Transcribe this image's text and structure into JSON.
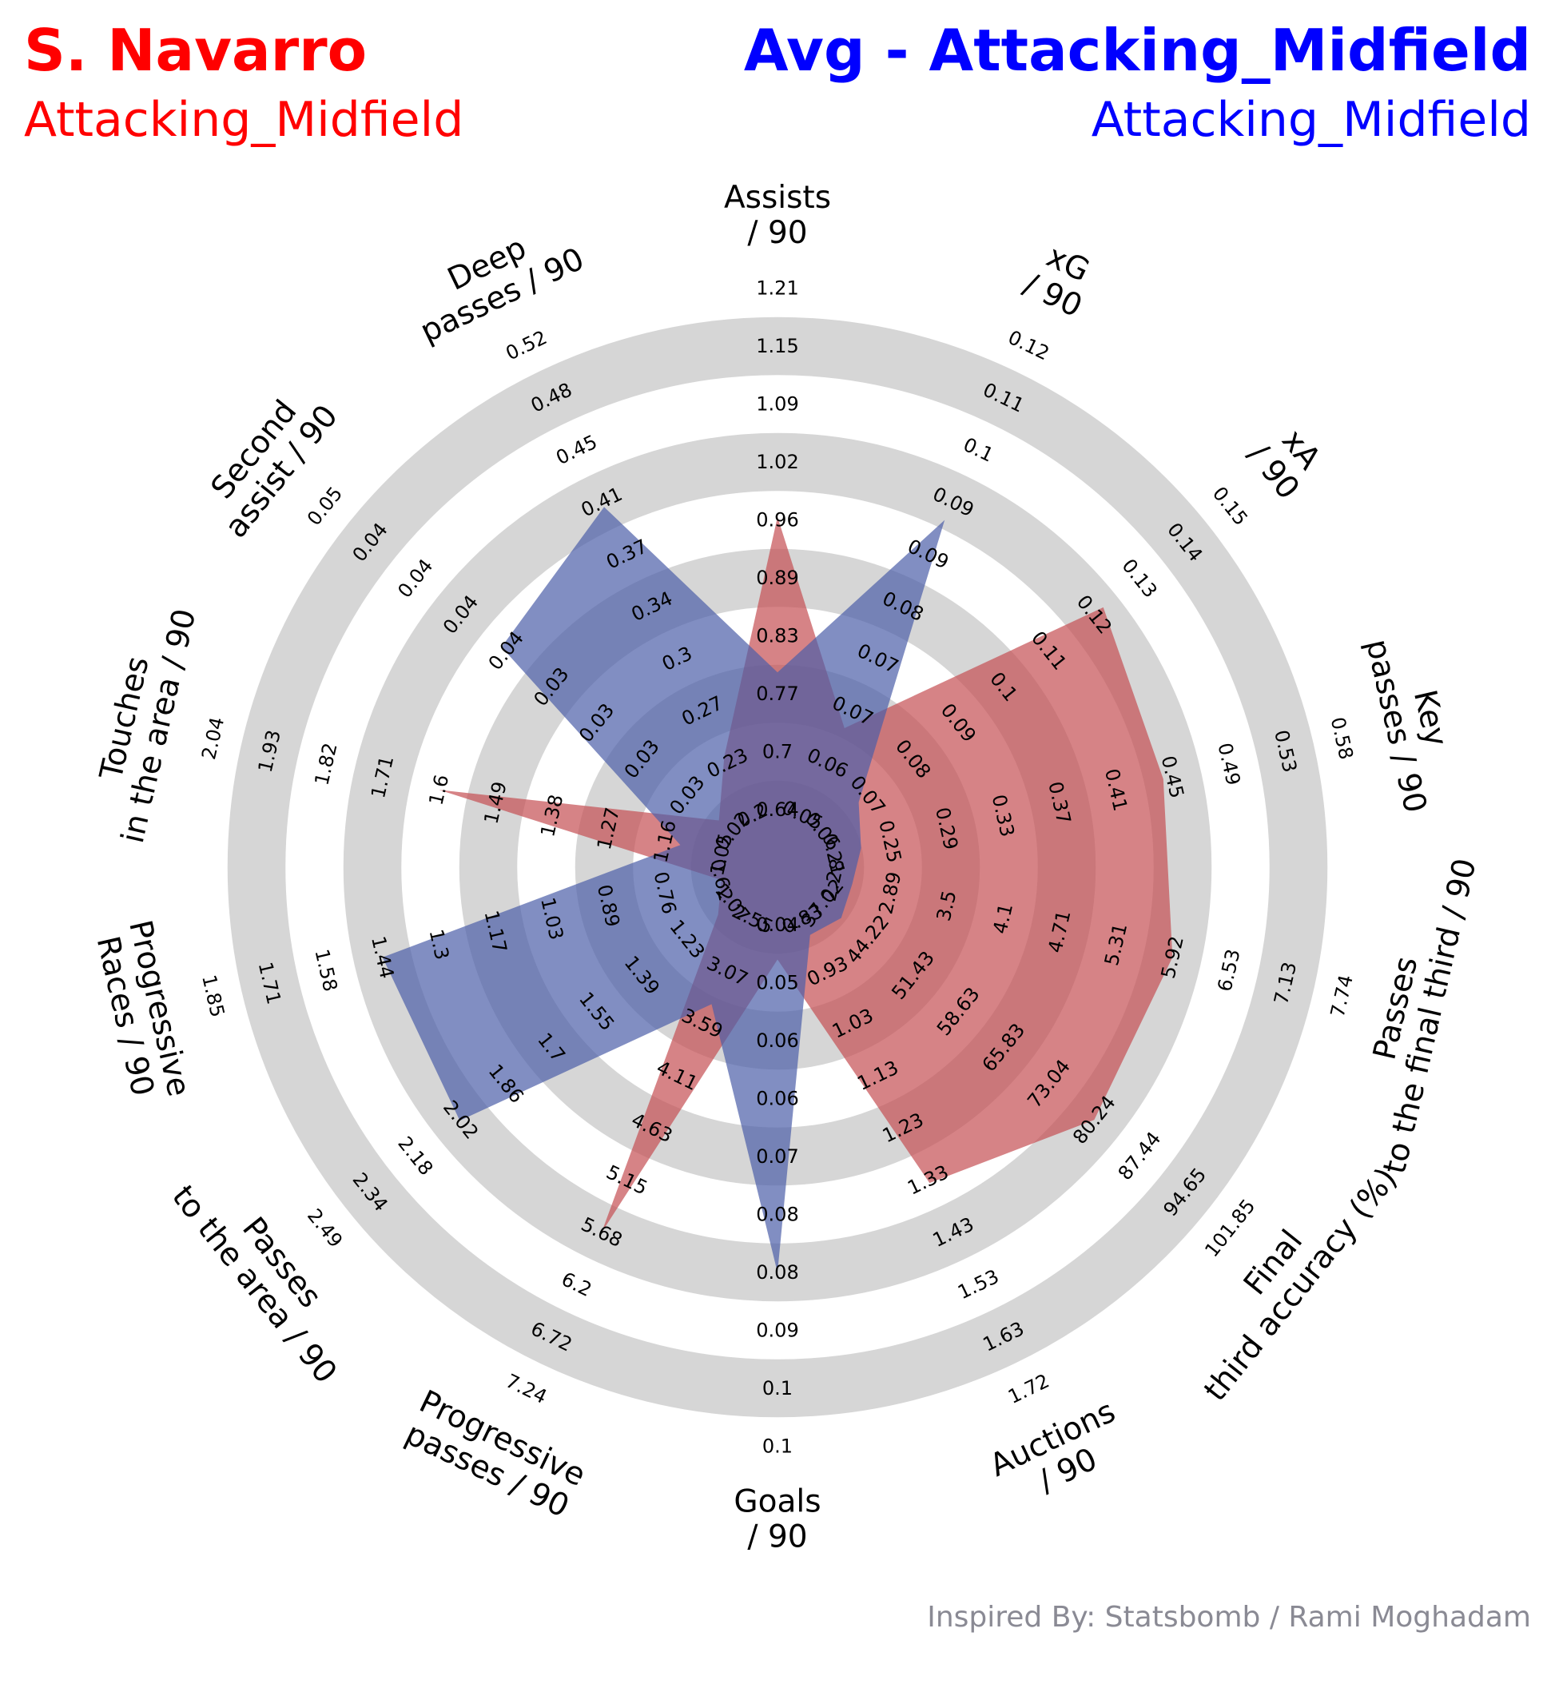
{
  "header": {
    "player_name": "S. Navarro",
    "player_position": "Attacking_Midfield",
    "compare_name": "Avg - Attacking_Midfield",
    "compare_position": "Attacking_Midfield",
    "player_color": "#ff0000",
    "compare_color": "#0000ff"
  },
  "credit": "Inspired By: Statsbomb / Rami Moghadam",
  "chart_data": {
    "type": "radar",
    "params": [
      {
        "label": [
          "Assists",
          "/ 90"
        ],
        "ticks": [
          "0.64",
          "0.7",
          "0.77",
          "0.83",
          "0.89",
          "0.96",
          "1.02",
          "1.09",
          "1.15",
          "1.21"
        ]
      },
      {
        "label": [
          "xG",
          "/ 90"
        ],
        "ticks": [
          "0.05",
          "0.06",
          "0.07",
          "0.07",
          "0.08",
          "0.09",
          "0.09",
          "0.1",
          "0.11",
          "0.12"
        ]
      },
      {
        "label": [
          "xA",
          "/ 90"
        ],
        "ticks": [
          "0.06",
          "0.07",
          "0.08",
          "0.09",
          "0.1",
          "0.11",
          "0.12",
          "0.13",
          "0.14",
          "0.15"
        ]
      },
      {
        "label": [
          "Key",
          "passes / 90"
        ],
        "ticks": [
          "0.21",
          "0.25",
          "0.29",
          "0.33",
          "0.37",
          "0.41",
          "0.45",
          "0.49",
          "0.53",
          "0.58"
        ]
      },
      {
        "label": [
          "Passes",
          "to the final third / 90"
        ],
        "ticks": [
          "2.28",
          "2.89",
          "3.5",
          "4.1",
          "4.71",
          "5.31",
          "5.92",
          "6.53",
          "7.13",
          "7.74"
        ]
      },
      {
        "label": [
          "Final",
          "third accuracy (%)"
        ],
        "ticks": [
          "37.02",
          "44.22",
          "51.43",
          "58.63",
          "65.83",
          "73.04",
          "80.24",
          "87.44",
          "94.65",
          "101.85"
        ]
      },
      {
        "label": [
          "Auctions",
          "/ 90"
        ],
        "ticks": [
          "0.83",
          "0.93",
          "1.03",
          "1.13",
          "1.23",
          "1.33",
          "1.43",
          "1.53",
          "1.63",
          "1.72"
        ]
      },
      {
        "label": [
          "Goals",
          "/ 90"
        ],
        "ticks": [
          "0.04",
          "0.05",
          "0.06",
          "0.06",
          "0.07",
          "0.08",
          "0.08",
          "0.09",
          "0.1",
          "0.1"
        ]
      },
      {
        "label": [
          "Progressive",
          "passes / 90"
        ],
        "ticks": [
          "2.55",
          "3.07",
          "3.59",
          "4.11",
          "4.63",
          "5.15",
          "5.68",
          "6.2",
          "6.72",
          "7.24"
        ]
      },
      {
        "label": [
          "Passes",
          "to the area / 90"
        ],
        "ticks": [
          "1.07",
          "1.23",
          "1.39",
          "1.55",
          "1.7",
          "1.86",
          "2.02",
          "2.18",
          "2.34",
          "2.49"
        ]
      },
      {
        "label": [
          "Progressive",
          "Races / 90"
        ],
        "ticks": [
          "0.62",
          "0.76",
          "0.89",
          "1.03",
          "1.17",
          "1.3",
          "1.44",
          "1.58",
          "1.71",
          "1.85"
        ]
      },
      {
        "label": [
          "Touches",
          "in the area / 90"
        ],
        "ticks": [
          "1.05",
          "1.16",
          "1.27",
          "1.38",
          "1.49",
          "1.6",
          "1.71",
          "1.82",
          "1.93",
          "2.04"
        ]
      },
      {
        "label": [
          "Second",
          "assist / 90"
        ],
        "ticks": [
          "0.02",
          "0.03",
          "0.03",
          "0.03",
          "0.03",
          "0.04",
          "0.04",
          "0.04",
          "0.04",
          "0.05"
        ]
      },
      {
        "label": [
          "Deep",
          "passes / 90"
        ],
        "ticks": [
          "0.2",
          "0.23",
          "0.27",
          "0.3",
          "0.34",
          "0.37",
          "0.41",
          "0.45",
          "0.48",
          "0.52"
        ]
      }
    ],
    "series": [
      {
        "name": "S. Navarro",
        "color": "#c44e52",
        "values": [
          0.96,
          0.063,
          0.122,
          0.45,
          5.92,
          80.24,
          1.33,
          0.044,
          5.68,
          1.12,
          0.62,
          1.6,
          0.021,
          0.24
        ]
      },
      {
        "name": "Avg - Attacking_Midfield",
        "color": "#4c5ea8",
        "values": [
          0.79,
          0.094,
          0.068,
          0.23,
          2.48,
          40.0,
          0.86,
          0.08,
          3.4,
          2.02,
          1.44,
          1.13,
          0.037,
          0.41
        ]
      }
    ],
    "rings": 10
  }
}
